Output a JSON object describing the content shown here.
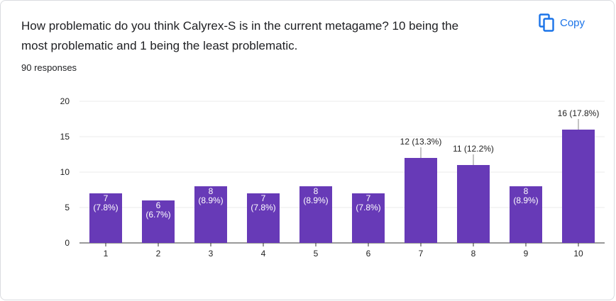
{
  "question": {
    "line1": "How problematic do you think Calyrex-S is in the current metagame? 10 being the",
    "line2": "most problematic and 1 being the least problematic."
  },
  "responses_label": "90 responses",
  "copy_label": "Copy",
  "icons": {
    "copy": "copy-icon"
  },
  "colors": {
    "bar": "#673ab7",
    "accent": "#1a73e8",
    "axis": "#333333",
    "grid": "#ebebeb"
  },
  "chart_data": {
    "type": "bar",
    "categories": [
      "1",
      "2",
      "3",
      "4",
      "5",
      "6",
      "7",
      "8",
      "9",
      "10"
    ],
    "values": [
      7,
      6,
      8,
      7,
      8,
      7,
      12,
      11,
      8,
      16
    ],
    "value_labels": [
      "7",
      "6",
      "8",
      "7",
      "8",
      "7",
      "12",
      "11",
      "8",
      "16"
    ],
    "percent_labels": [
      "(7.8%)",
      "(6.7%)",
      "(8.9%)",
      "(7.8%)",
      "(8.9%)",
      "(7.8%)",
      "(13.3%)",
      "(12.2%)",
      "(8.9%)",
      "(17.8%)"
    ],
    "y_ticks": [
      0,
      5,
      10,
      15,
      20
    ],
    "ylim": [
      0,
      20
    ],
    "grid": true,
    "legend": "none"
  }
}
